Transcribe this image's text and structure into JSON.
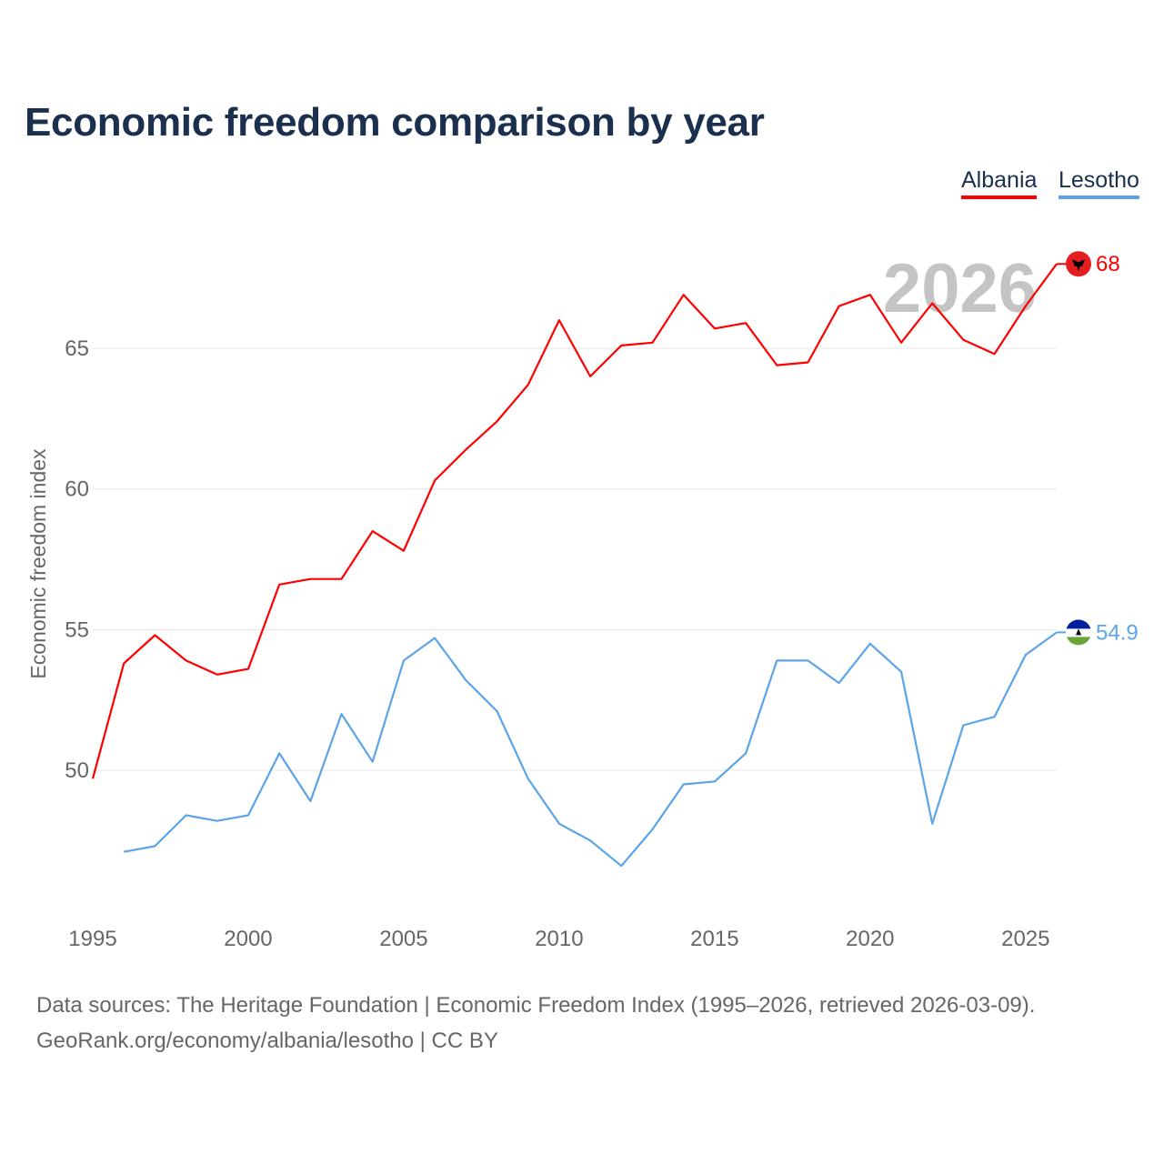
{
  "title": "Economic freedom comparison by year",
  "source_line1": "Data sources: The Heritage Foundation | Economic Freedom Index (1995–2026, retrieved 2026-03-09).",
  "source_line2": "GeoRank.org/economy/albania/lesotho | CC BY",
  "chart_data": {
    "type": "line",
    "title": "Economic freedom comparison by year",
    "xlabel": "",
    "ylabel": "Economic freedom index",
    "xlim": [
      1995,
      2026
    ],
    "ylim": [
      45.5,
      69
    ],
    "yticks": [
      50,
      55,
      60,
      65
    ],
    "xticks": [
      1995,
      2000,
      2005,
      2010,
      2015,
      2020,
      2025
    ],
    "grid": true,
    "legend_position": "top-right",
    "watermark_year": "2026",
    "series": [
      {
        "name": "Albania",
        "color": "#ff0000",
        "end_label": "68",
        "flag": "albania-flag",
        "x": [
          1995,
          1996,
          1997,
          1998,
          1999,
          2000,
          2001,
          2002,
          2003,
          2004,
          2005,
          2006,
          2007,
          2008,
          2009,
          2010,
          2011,
          2012,
          2013,
          2014,
          2015,
          2016,
          2017,
          2018,
          2019,
          2020,
          2021,
          2022,
          2023,
          2024,
          2025,
          2026
        ],
        "values": [
          49.7,
          53.8,
          54.8,
          53.9,
          53.4,
          53.6,
          56.6,
          56.8,
          56.8,
          58.5,
          57.8,
          60.3,
          61.4,
          62.4,
          63.7,
          66.0,
          64.0,
          65.1,
          65.2,
          66.9,
          65.7,
          65.9,
          64.4,
          64.5,
          66.5,
          66.9,
          65.2,
          66.6,
          65.3,
          64.8,
          66.5,
          68.0
        ]
      },
      {
        "name": "Lesotho",
        "color": "#5ba4e8",
        "end_label": "54.9",
        "flag": "lesotho-flag",
        "x": [
          1996,
          1997,
          1998,
          1999,
          2000,
          2001,
          2002,
          2003,
          2004,
          2005,
          2006,
          2007,
          2008,
          2009,
          2010,
          2011,
          2012,
          2013,
          2014,
          2015,
          2016,
          2017,
          2018,
          2019,
          2020,
          2021,
          2022,
          2023,
          2024,
          2025,
          2026
        ],
        "values": [
          47.1,
          47.3,
          48.4,
          48.2,
          48.4,
          50.6,
          48.9,
          52.0,
          50.3,
          53.9,
          54.7,
          53.2,
          52.1,
          49.7,
          48.1,
          47.5,
          46.6,
          47.9,
          49.5,
          49.6,
          50.6,
          53.9,
          53.9,
          53.1,
          54.5,
          53.5,
          48.1,
          51.6,
          51.9,
          54.1,
          54.9
        ]
      }
    ]
  }
}
